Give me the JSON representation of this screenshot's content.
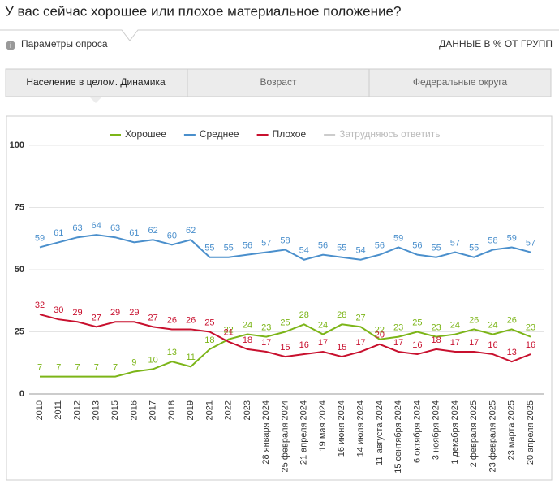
{
  "header": {
    "title": "У вас сейчас хорошее или плохое материальное положение?",
    "params": "Параметры опроса",
    "units": "ДАННЫЕ В % ОТ ГРУПП"
  },
  "tabs": [
    "Население в целом. Динамика",
    "Возраст",
    "Федеральные округа"
  ],
  "chart_data": {
    "type": "line",
    "categories": [
      "2010",
      "2011",
      "2012",
      "2013",
      "2015",
      "2016",
      "2017",
      "2018",
      "2019",
      "2021",
      "2022",
      "2023",
      "28 января 2024",
      "25 февраля 2024",
      "21 апреля 2024",
      "19 мая 2024",
      "16 июня 2024",
      "14 июля 2024",
      "11 августа 2024",
      "15 сентября 2024",
      "6 октября 2024",
      "3 ноября 2024",
      "1 декабря 2024",
      "2 февраля 2025",
      "23 февраля 2025",
      "23 марта 2025",
      "20 апреля 2025"
    ],
    "series": [
      {
        "name": "Хорошее",
        "color": "#7cb518",
        "values": [
          7,
          7,
          7,
          7,
          7,
          9,
          10,
          13,
          11,
          18,
          22,
          24,
          23,
          25,
          28,
          24,
          28,
          27,
          22,
          23,
          25,
          23,
          24,
          26,
          24,
          26,
          23
        ]
      },
      {
        "name": "Среднее",
        "color": "#4a8fcc",
        "values": [
          59,
          61,
          63,
          64,
          63,
          61,
          62,
          60,
          62,
          55,
          55,
          56,
          57,
          58,
          54,
          56,
          55,
          54,
          56,
          59,
          56,
          55,
          57,
          55,
          58,
          59,
          57
        ]
      },
      {
        "name": "Плохое",
        "color": "#c8102e",
        "values": [
          32,
          30,
          29,
          27,
          29,
          29,
          27,
          26,
          26,
          25,
          21,
          18,
          17,
          15,
          16,
          17,
          15,
          17,
          20,
          17,
          16,
          18,
          17,
          17,
          16,
          13,
          16
        ]
      },
      {
        "name": "Затрудняюсь ответить",
        "color": "#cccccc"
      }
    ],
    "ylim": [
      0,
      100
    ],
    "yticks": [
      0,
      25,
      50,
      75,
      100
    ],
    "grid": true
  }
}
